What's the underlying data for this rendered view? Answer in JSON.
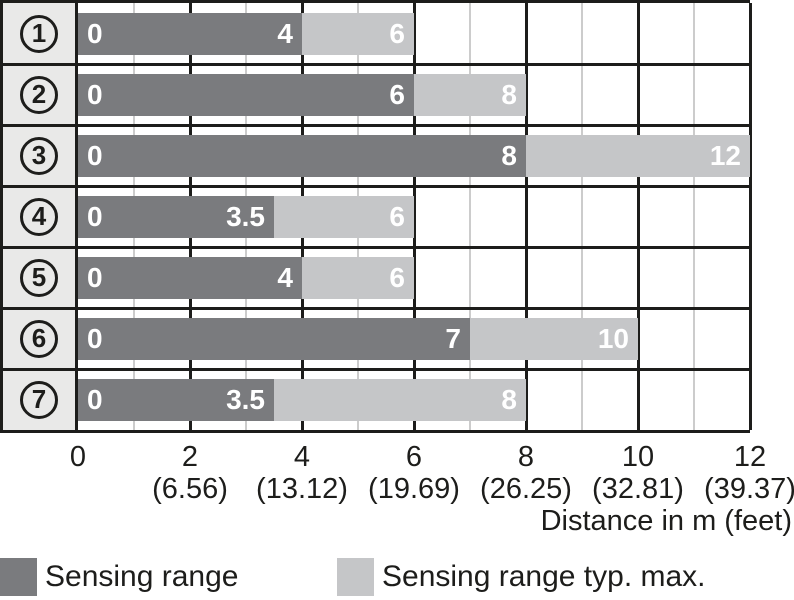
{
  "chart_data": {
    "type": "bar",
    "orientation": "horizontal",
    "title": "",
    "xlabel": "Distance in m (feet)",
    "ylabel": "",
    "xlim": [
      0,
      12
    ],
    "grid": {
      "minor_step_m": 1,
      "major_step_m": 2
    },
    "legend_position": "bottom",
    "categories": [
      "1",
      "2",
      "3",
      "4",
      "5",
      "6",
      "7"
    ],
    "bar_start_label": "0",
    "series": [
      {
        "name": "Sensing range",
        "color": "#7a7b7e",
        "values": [
          4,
          6,
          8,
          3.5,
          4,
          7,
          3.5
        ]
      },
      {
        "name": "Sensing range typ. max.",
        "color": "#c5c6c8",
        "values": [
          6,
          8,
          12,
          6,
          6,
          10,
          8
        ]
      }
    ],
    "ticks": [
      {
        "m": "0",
        "feet": ""
      },
      {
        "m": "2",
        "feet": "(6.56)"
      },
      {
        "m": "4",
        "feet": "(13.12)"
      },
      {
        "m": "6",
        "feet": "(19.69)"
      },
      {
        "m": "8",
        "feet": "(26.25)"
      },
      {
        "m": "10",
        "feet": "(32.81)"
      },
      {
        "m": "12",
        "feet": "(39.37)"
      }
    ]
  },
  "legend": {
    "items": [
      {
        "label": "Sensing range",
        "color": "#7a7b7e"
      },
      {
        "label": "Sensing range typ. max.",
        "color": "#c5c6c8"
      }
    ]
  },
  "colors": {
    "dark_bar": "#7a7b7e",
    "light_bar": "#c5c6c8",
    "row_label_bg": "#e9e9e8",
    "border_black": "#1d1d1b",
    "minor_grid": "#cccccc",
    "bar_text": "#ffffff"
  }
}
